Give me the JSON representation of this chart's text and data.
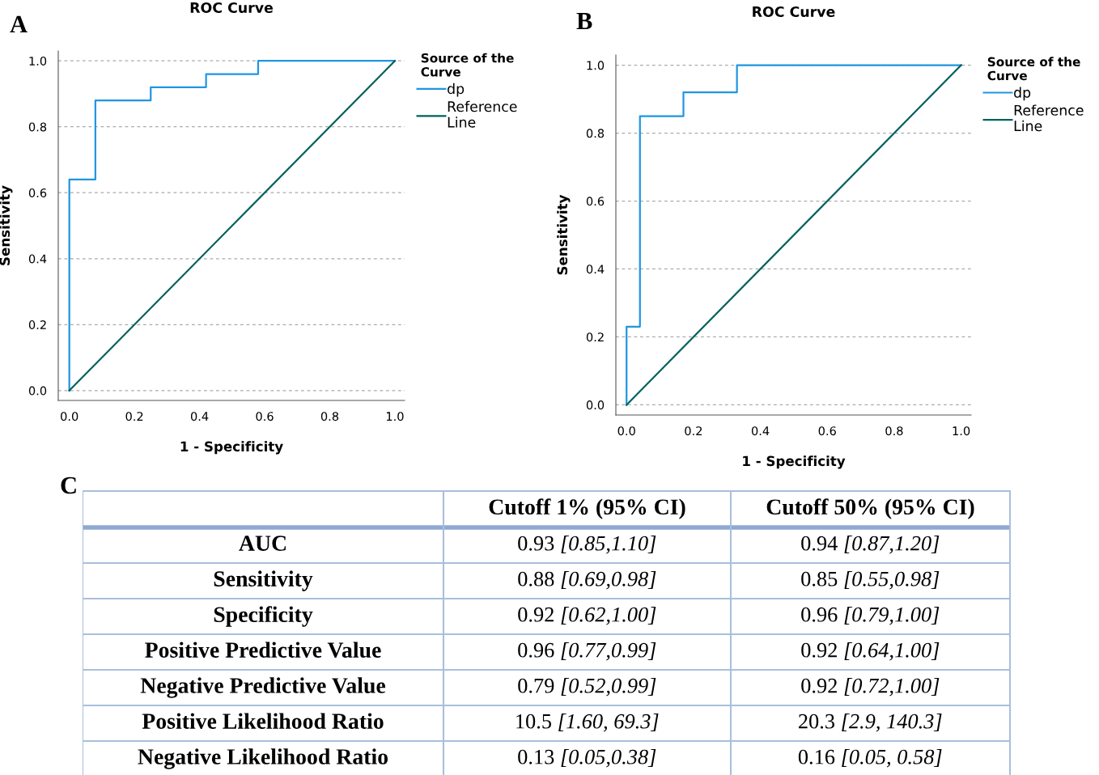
{
  "chart_data": [
    {
      "type": "line",
      "title": "ROC Curve",
      "xlabel": "1 - Specificity",
      "ylabel": "Sensitivity",
      "legend_title": "Source of the\nCurve",
      "legend": "top right",
      "grid": "y",
      "marker": "none",
      "line_style": "solid",
      "annotations": [
        "A"
      ],
      "xlim": [
        -0.034,
        1.03
      ],
      "ylim": [
        -0.03,
        1.03
      ],
      "xticks": [
        {
          "value": 0,
          "label": "0.0"
        },
        {
          "value": 0.2,
          "label": "0.2"
        },
        {
          "value": 0.4,
          "label": "0.4"
        },
        {
          "value": 0.6,
          "label": "0.6"
        },
        {
          "value": 0.8,
          "label": "0.8"
        },
        {
          "value": 1,
          "label": "1.0"
        }
      ],
      "yticks": [
        {
          "value": 0,
          "label": "0.0"
        },
        {
          "value": 0.2,
          "label": "0.2"
        },
        {
          "value": 0.4,
          "label": "0.4"
        },
        {
          "value": 0.6,
          "label": "0.6"
        },
        {
          "value": 0.8,
          "label": "0.8"
        },
        {
          "value": 1,
          "label": "1.0"
        }
      ],
      "series": [
        {
          "name": "dp",
          "color": "#1f96e0",
          "x": [
            0,
            0,
            0.08,
            0.08,
            0.25,
            0.25,
            0.42,
            0.42,
            0.58,
            0.58,
            1
          ],
          "values": [
            0,
            0.64,
            0.64,
            0.88,
            0.88,
            0.92,
            0.92,
            0.96,
            0.96,
            1,
            1
          ]
        },
        {
          "name": "Reference\nLine",
          "color": "#00605e",
          "x": [
            0,
            1
          ],
          "values": [
            0,
            1
          ]
        }
      ]
    },
    {
      "type": "line",
      "title": "ROC Curve",
      "xlabel": "1 - Specificity",
      "ylabel": "Sensitivity",
      "legend_title": "Source of the\nCurve",
      "legend": "top right",
      "grid": "y",
      "marker": "none",
      "line_style": "solid",
      "annotations": [
        "B"
      ],
      "xlim": [
        -0.032,
        1.03
      ],
      "ylim": [
        -0.03,
        1.03
      ],
      "xticks": [
        {
          "value": 0,
          "label": "0.0"
        },
        {
          "value": 0.2,
          "label": "0.2"
        },
        {
          "value": 0.4,
          "label": "0.4"
        },
        {
          "value": 0.6,
          "label": "0.6"
        },
        {
          "value": 0.8,
          "label": "0.8"
        },
        {
          "value": 1,
          "label": "1.0"
        }
      ],
      "yticks": [
        {
          "value": 0,
          "label": "0.0"
        },
        {
          "value": 0.2,
          "label": "0.2"
        },
        {
          "value": 0.4,
          "label": "0.4"
        },
        {
          "value": 0.6,
          "label": "0.6"
        },
        {
          "value": 0.8,
          "label": "0.8"
        },
        {
          "value": 1,
          "label": "1.0"
        }
      ],
      "series": [
        {
          "name": "dp",
          "color": "#1f96e0",
          "x": [
            0,
            0,
            0.04,
            0.04,
            0.17,
            0.17,
            0.33,
            0.33,
            1
          ],
          "values": [
            0,
            0.23,
            0.23,
            0.85,
            0.85,
            0.92,
            0.92,
            1,
            1
          ]
        },
        {
          "name": "Reference\nLine",
          "color": "#00605e",
          "x": [
            0,
            1
          ],
          "values": [
            0,
            1
          ]
        }
      ]
    },
    {
      "type": "other",
      "annotations": [
        "C"
      ],
      "categories": [
        null,
        "Cutoff 1% (95% CI)",
        "Cutoff 50% (95% CI)"
      ],
      "y_categories": [
        "AUC",
        "Sensitivity",
        "Specificity",
        "Positive Predictive Value",
        "Negative Predictive Value",
        "Positive Likelihood Ratio",
        "Negative Likelihood Ratio"
      ],
      "cell_labels": [
        [
          "0.93 [0.85,1.10]",
          "0.94 [0.87,1.20]"
        ],
        [
          "0.88 [0.69,0.98]",
          "0.85 [0.55,0.98]"
        ],
        [
          "0.92 [0.62,1.00]",
          "0.96 [0.79,1.00]"
        ],
        [
          "0.96 [0.77,0.99]",
          "0.92 [0.64,1.00]"
        ],
        [
          "0.79 [0.52,0.99]",
          "0.92 [0.72,1.00]"
        ],
        [
          "10.5 [1.60, 69.3]",
          "20.3 [2.9, 140.3]"
        ],
        [
          "0.13 [0.05,0.38]",
          "0.16 [0.05, 0.58]"
        ]
      ]
    }
  ]
}
